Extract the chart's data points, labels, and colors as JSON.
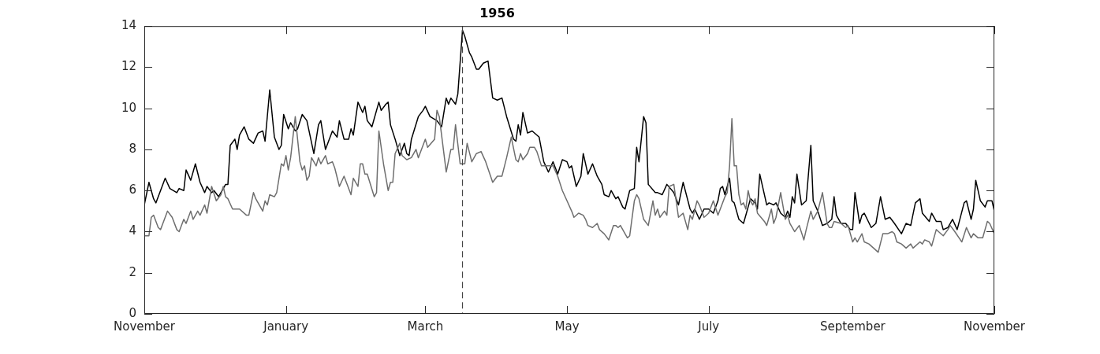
{
  "chart_data": {
    "type": "line",
    "title": "1956",
    "marker": "none",
    "xlim": [
      "1955-11-01",
      "1956-11-01"
    ],
    "xticks": [
      {
        "value": "1955-11-01",
        "label": "November"
      },
      {
        "value": "1956-01-01",
        "label": "January"
      },
      {
        "value": "1956-03-01",
        "label": "March"
      },
      {
        "value": "1956-05-01",
        "label": "May"
      },
      {
        "value": "1956-07-01",
        "label": "July"
      },
      {
        "value": "1956-09-01",
        "label": "September"
      },
      {
        "value": "1956-11-01",
        "label": "November"
      }
    ],
    "ylim": [
      0,
      14
    ],
    "yticks": [
      0,
      2,
      4,
      6,
      8,
      10,
      12,
      14
    ],
    "ref_lines": [
      {
        "axis": "x",
        "value": "1956-03-17",
        "color": "#444444",
        "line_style": "dashed"
      }
    ],
    "series": [
      {
        "color": "#6e6e6e",
        "line_style": "solid",
        "x": [
          "1955-11-01",
          "1955-11-03",
          "1955-11-04",
          "1955-11-05",
          "1955-11-07",
          "1955-11-08",
          "1955-11-09",
          "1955-11-11",
          "1955-11-13",
          "1955-11-15",
          "1955-11-16",
          "1955-11-18",
          "1955-11-19",
          "1955-11-21",
          "1955-11-22",
          "1955-11-24",
          "1955-11-25",
          "1955-11-27",
          "1955-11-28",
          "1955-11-30",
          "1955-12-02",
          "1955-12-04",
          "1955-12-05",
          "1955-12-06",
          "1955-12-07",
          "1955-12-09",
          "1955-12-11",
          "1955-12-12",
          "1955-12-15",
          "1955-12-16",
          "1955-12-18",
          "1955-12-19",
          "1955-12-22",
          "1955-12-23",
          "1955-12-24",
          "1955-12-25",
          "1955-12-27",
          "1955-12-28",
          "1955-12-30",
          "1955-12-31",
          "1956-01-01",
          "1956-01-02",
          "1956-01-03",
          "1956-01-05",
          "1956-01-07",
          "1956-01-08",
          "1956-01-09",
          "1956-01-10",
          "1956-01-11",
          "1956-01-12",
          "1956-01-14",
          "1956-01-15",
          "1956-01-16",
          "1956-01-18",
          "1956-01-19",
          "1956-01-21",
          "1956-01-22",
          "1956-01-24",
          "1956-01-26",
          "1956-01-27",
          "1956-01-29",
          "1956-01-30",
          "1956-02-01",
          "1956-02-02",
          "1956-02-03",
          "1956-02-04",
          "1956-02-05",
          "1956-02-08",
          "1956-02-09",
          "1956-02-10",
          "1956-02-12",
          "1956-02-14",
          "1956-02-15",
          "1956-02-16",
          "1956-02-17",
          "1956-02-19",
          "1956-02-20",
          "1956-02-22",
          "1956-02-24",
          "1956-02-26",
          "1956-02-27",
          "1956-03-01",
          "1956-03-02",
          "1956-03-05",
          "1956-03-06",
          "1956-03-07",
          "1956-03-10",
          "1956-03-12",
          "1956-03-13",
          "1956-03-14",
          "1956-03-16",
          "1956-03-18",
          "1956-03-19",
          "1956-03-21",
          "1956-03-23",
          "1956-03-25",
          "1956-03-27",
          "1956-03-30",
          "1956-04-01",
          "1956-04-03",
          "1956-04-05",
          "1956-04-07",
          "1956-04-09",
          "1956-04-10",
          "1956-04-11",
          "1956-04-12",
          "1956-04-14",
          "1956-04-15",
          "1956-04-17",
          "1956-04-18",
          "1956-04-20",
          "1956-04-22",
          "1956-04-25",
          "1956-04-27",
          "1956-04-29",
          "1956-05-01",
          "1956-05-03",
          "1956-05-04",
          "1956-05-06",
          "1956-05-08",
          "1956-05-09",
          "1956-05-10",
          "1956-05-12",
          "1956-05-14",
          "1956-05-15",
          "1956-05-17",
          "1956-05-19",
          "1956-05-21",
          "1956-05-22",
          "1956-05-23",
          "1956-05-24",
          "1956-05-25",
          "1956-05-27",
          "1956-05-28",
          "1956-05-30",
          "1956-05-31",
          "1956-06-01",
          "1956-06-03",
          "1956-06-05",
          "1956-06-07",
          "1956-06-08",
          "1956-06-09",
          "1956-06-10",
          "1956-06-12",
          "1956-06-13",
          "1956-06-14",
          "1956-06-16",
          "1956-06-18",
          "1956-06-20",
          "1956-06-22",
          "1956-06-23",
          "1956-06-24",
          "1956-06-26",
          "1956-06-27",
          "1956-06-29",
          "1956-07-01",
          "1956-07-03",
          "1956-07-05",
          "1956-07-08",
          "1956-07-09",
          "1956-07-10",
          "1956-07-11",
          "1956-07-12",
          "1956-07-13",
          "1956-07-14",
          "1956-07-15",
          "1956-07-16",
          "1956-07-17",
          "1956-07-18",
          "1956-07-19",
          "1956-07-20",
          "1956-07-21",
          "1956-07-22",
          "1956-07-25",
          "1956-07-26",
          "1956-07-28",
          "1956-07-29",
          "1956-07-30",
          "1956-08-01",
          "1956-08-03",
          "1956-08-04",
          "1956-08-05",
          "1956-08-07",
          "1956-08-09",
          "1956-08-11",
          "1956-08-12",
          "1956-08-14",
          "1956-08-15",
          "1956-08-17",
          "1956-08-19",
          "1956-08-21",
          "1956-08-22",
          "1956-08-23",
          "1956-08-24",
          "1956-08-27",
          "1956-08-29",
          "1956-08-30",
          "1956-09-01",
          "1956-09-02",
          "1956-09-03",
          "1956-09-05",
          "1956-09-06",
          "1956-09-08",
          "1956-09-10",
          "1956-09-12",
          "1956-09-14",
          "1956-09-16",
          "1956-09-18",
          "1956-09-19",
          "1956-09-20",
          "1956-09-22",
          "1956-09-24",
          "1956-09-26",
          "1956-09-27",
          "1956-09-30",
          "1956-10-01",
          "1956-10-02",
          "1956-10-04",
          "1956-10-05",
          "1956-10-07",
          "1956-10-08",
          "1956-10-10",
          "1956-10-12",
          "1956-10-13",
          "1956-10-15",
          "1956-10-18",
          "1956-10-20",
          "1956-10-22",
          "1956-10-23",
          "1956-10-25",
          "1956-10-27",
          "1956-10-29",
          "1956-10-30",
          "1956-11-01"
        ],
        "values": [
          3.8,
          3.8,
          4.7,
          4.8,
          4.2,
          4.1,
          4.4,
          5.0,
          4.7,
          4.1,
          4.0,
          4.6,
          4.4,
          5.0,
          4.6,
          5.0,
          4.8,
          5.3,
          4.9,
          6.2,
          5.5,
          5.8,
          6.2,
          5.7,
          5.6,
          5.1,
          5.1,
          5.1,
          4.8,
          4.8,
          5.9,
          5.6,
          5.0,
          5.5,
          5.3,
          5.8,
          5.7,
          5.9,
          7.3,
          7.2,
          7.7,
          7.0,
          7.6,
          9.6,
          7.4,
          7.0,
          7.2,
          6.5,
          6.7,
          7.6,
          7.2,
          7.6,
          7.3,
          7.7,
          7.3,
          7.4,
          7.1,
          6.2,
          6.7,
          6.4,
          5.8,
          6.6,
          6.2,
          7.3,
          7.3,
          6.8,
          6.8,
          5.7,
          5.9,
          8.9,
          7.3,
          6.0,
          6.4,
          6.4,
          7.8,
          8.3,
          7.7,
          7.5,
          7.6,
          8.0,
          7.6,
          8.5,
          8.1,
          8.5,
          9.9,
          9.6,
          6.9,
          8.0,
          8.0,
          9.2,
          7.3,
          7.3,
          8.3,
          7.4,
          7.8,
          7.9,
          7.4,
          6.4,
          6.7,
          6.7,
          7.6,
          8.6,
          7.5,
          7.4,
          7.8,
          7.5,
          7.8,
          8.1,
          8.1,
          7.9,
          7.2,
          7.2,
          7.2,
          6.7,
          6.0,
          5.5,
          5.0,
          4.7,
          4.9,
          4.8,
          4.6,
          4.3,
          4.2,
          4.4,
          4.1,
          3.9,
          3.6,
          4.3,
          4.3,
          4.2,
          4.3,
          4.1,
          3.7,
          3.8,
          5.5,
          5.8,
          5.6,
          4.6,
          4.3,
          5.5,
          4.8,
          5.1,
          4.7,
          5.0,
          4.8,
          6.2,
          6.3,
          4.7,
          4.9,
          4.1,
          4.8,
          4.6,
          5.5,
          5.3,
          4.7,
          4.9,
          5.5,
          4.8,
          5.7,
          5.9,
          7.2,
          9.5,
          7.2,
          7.2,
          5.8,
          5.3,
          5.4,
          5.1,
          6.0,
          5.5,
          5.3,
          5.6,
          4.9,
          4.5,
          4.3,
          5.1,
          4.4,
          4.7,
          5.9,
          4.6,
          4.8,
          4.4,
          4.0,
          4.3,
          3.6,
          4.1,
          5.0,
          4.6,
          5.0,
          5.9,
          4.4,
          4.2,
          4.2,
          4.5,
          4.4,
          4.2,
          4.3,
          3.5,
          3.7,
          3.5,
          3.9,
          3.5,
          3.4,
          3.2,
          3.0,
          3.9,
          3.9,
          4.0,
          3.9,
          3.5,
          3.4,
          3.2,
          3.4,
          3.2,
          3.5,
          3.4,
          3.6,
          3.5,
          3.3,
          4.1,
          4.0,
          3.8,
          4.1,
          4.3,
          4.0,
          3.5,
          4.2,
          3.7,
          3.9,
          3.7,
          3.7,
          4.5,
          4.4,
          3.9
        ]
      },
      {
        "color": "#000000",
        "line_style": "solid",
        "x": [
          "1955-11-01",
          "1955-11-03",
          "1955-11-05",
          "1955-11-06",
          "1955-11-10",
          "1955-11-12",
          "1955-11-15",
          "1955-11-16",
          "1955-11-18",
          "1955-11-19",
          "1955-11-21",
          "1955-11-23",
          "1955-11-25",
          "1955-11-27",
          "1955-11-28",
          "1955-11-30",
          "1955-12-01",
          "1955-12-03",
          "1955-12-06",
          "1955-12-07",
          "1955-12-08",
          "1955-12-10",
          "1955-12-11",
          "1955-12-12",
          "1955-12-14",
          "1955-12-16",
          "1955-12-18",
          "1955-12-20",
          "1955-12-22",
          "1955-12-23",
          "1955-12-25",
          "1955-12-27",
          "1955-12-29",
          "1955-12-30",
          "1955-12-31",
          "1956-01-02",
          "1956-01-03",
          "1956-01-05",
          "1956-01-06",
          "1956-01-08",
          "1956-01-10",
          "1956-01-13",
          "1956-01-15",
          "1956-01-16",
          "1956-01-18",
          "1956-01-21",
          "1956-01-23",
          "1956-01-24",
          "1956-01-26",
          "1956-01-28",
          "1956-01-29",
          "1956-01-30",
          "1956-02-01",
          "1956-02-03",
          "1956-02-04",
          "1956-02-05",
          "1956-02-07",
          "1956-02-08",
          "1956-02-10",
          "1956-02-11",
          "1956-02-13",
          "1956-02-14",
          "1956-02-15",
          "1956-02-17",
          "1956-02-19",
          "1956-02-21",
          "1956-02-22",
          "1956-02-23",
          "1956-02-24",
          "1956-02-27",
          "1956-02-29",
          "1956-03-01",
          "1956-03-03",
          "1956-03-06",
          "1956-03-08",
          "1956-03-10",
          "1956-03-11",
          "1956-03-12",
          "1956-03-14",
          "1956-03-15",
          "1956-03-17",
          "1956-03-18",
          "1956-03-20",
          "1956-03-21",
          "1956-03-23",
          "1956-03-24",
          "1956-03-26",
          "1956-03-28",
          "1956-03-30",
          "1956-04-01",
          "1956-04-03",
          "1956-04-05",
          "1956-04-08",
          "1956-04-09",
          "1956-04-10",
          "1956-04-11",
          "1956-04-12",
          "1956-04-14",
          "1956-04-16",
          "1956-04-19",
          "1956-04-21",
          "1956-04-23",
          "1956-04-25",
          "1956-04-27",
          "1956-04-29",
          "1956-05-01",
          "1956-05-02",
          "1956-05-03",
          "1956-05-05",
          "1956-05-07",
          "1956-05-08",
          "1956-05-10",
          "1956-05-12",
          "1956-05-14",
          "1956-05-16",
          "1956-05-17",
          "1956-05-19",
          "1956-05-20",
          "1956-05-22",
          "1956-05-23",
          "1956-05-25",
          "1956-05-26",
          "1956-05-28",
          "1956-05-30",
          "1956-05-31",
          "1956-06-01",
          "1956-06-03",
          "1956-06-04",
          "1956-06-05",
          "1956-06-08",
          "1956-06-09",
          "1956-06-11",
          "1956-06-13",
          "1956-06-16",
          "1956-06-18",
          "1956-06-20",
          "1956-06-23",
          "1956-06-24",
          "1956-06-25",
          "1956-06-27",
          "1956-06-29",
          "1956-07-01",
          "1956-07-03",
          "1956-07-05",
          "1956-07-06",
          "1956-07-07",
          "1956-07-08",
          "1956-07-10",
          "1956-07-11",
          "1956-07-12",
          "1956-07-14",
          "1956-07-16",
          "1956-07-19",
          "1956-07-21",
          "1956-07-22",
          "1956-07-23",
          "1956-07-26",
          "1956-07-27",
          "1956-07-29",
          "1956-07-30",
          "1956-08-01",
          "1956-08-03",
          "1956-08-04",
          "1956-08-05",
          "1956-08-06",
          "1956-08-07",
          "1956-08-08",
          "1956-08-10",
          "1956-08-12",
          "1956-08-14",
          "1956-08-15",
          "1956-08-17",
          "1956-08-19",
          "1956-08-21",
          "1956-08-23",
          "1956-08-24",
          "1956-08-25",
          "1956-08-27",
          "1956-08-29",
          "1956-08-31",
          "1956-09-01",
          "1956-09-02",
          "1956-09-04",
          "1956-09-05",
          "1956-09-06",
          "1956-09-09",
          "1956-09-11",
          "1956-09-13",
          "1956-09-15",
          "1956-09-17",
          "1956-09-19",
          "1956-09-22",
          "1956-09-24",
          "1956-09-26",
          "1956-09-28",
          "1956-09-30",
          "1956-10-01",
          "1956-10-04",
          "1956-10-05",
          "1956-10-07",
          "1956-10-09",
          "1956-10-10",
          "1956-10-12",
          "1956-10-14",
          "1956-10-16",
          "1956-10-19",
          "1956-10-20",
          "1956-10-22",
          "1956-10-23",
          "1956-10-24",
          "1956-10-26",
          "1956-10-28",
          "1956-10-29",
          "1956-10-31",
          "1956-11-01"
        ],
        "values": [
          5.3,
          6.4,
          5.6,
          5.4,
          6.6,
          6.1,
          5.9,
          6.1,
          6.0,
          7.0,
          6.5,
          7.3,
          6.4,
          5.9,
          6.2,
          5.9,
          6.0,
          5.7,
          6.3,
          6.3,
          8.2,
          8.5,
          8.0,
          8.7,
          9.1,
          8.5,
          8.3,
          8.8,
          8.9,
          8.4,
          10.9,
          8.6,
          8.0,
          8.2,
          9.7,
          9.0,
          9.3,
          8.9,
          9.0,
          9.7,
          9.4,
          7.8,
          9.2,
          9.4,
          8.0,
          8.9,
          8.6,
          9.4,
          8.5,
          8.5,
          9.0,
          8.7,
          10.3,
          9.8,
          10.1,
          9.4,
          9.1,
          9.5,
          10.3,
          9.9,
          10.2,
          10.3,
          9.2,
          8.5,
          7.7,
          8.3,
          7.8,
          7.7,
          8.5,
          9.6,
          9.9,
          10.1,
          9.6,
          9.4,
          9.1,
          10.5,
          10.2,
          10.5,
          10.2,
          10.7,
          13.8,
          13.5,
          12.7,
          12.5,
          11.9,
          11.9,
          12.2,
          12.3,
          10.5,
          10.4,
          10.5,
          9.6,
          8.5,
          8.4,
          9.2,
          8.7,
          9.8,
          8.8,
          8.9,
          8.6,
          7.4,
          6.9,
          7.4,
          6.8,
          7.5,
          7.4,
          7.1,
          7.2,
          6.2,
          6.7,
          7.8,
          6.8,
          7.3,
          6.7,
          6.3,
          5.8,
          5.7,
          6.0,
          5.6,
          5.7,
          5.2,
          5.1,
          6.0,
          6.1,
          8.1,
          7.4,
          9.6,
          9.3,
          6.3,
          5.9,
          5.9,
          5.8,
          6.3,
          5.9,
          5.3,
          6.4,
          5.1,
          4.9,
          5.1,
          4.6,
          5.1,
          5.1,
          4.9,
          5.5,
          6.1,
          6.2,
          5.8,
          6.6,
          5.5,
          5.4,
          4.6,
          4.4,
          5.6,
          5.4,
          5.1,
          6.8,
          5.3,
          5.4,
          5.3,
          5.4,
          4.9,
          4.7,
          5.0,
          4.7,
          5.7,
          5.4,
          6.8,
          5.3,
          5.5,
          8.2,
          5.5,
          5.0,
          4.3,
          4.4,
          4.6,
          5.7,
          4.8,
          4.4,
          4.4,
          4.1,
          4.1,
          5.9,
          4.4,
          4.8,
          4.9,
          4.2,
          4.4,
          5.7,
          4.6,
          4.7,
          4.4,
          3.9,
          4.4,
          4.3,
          5.4,
          5.6,
          4.9,
          4.5,
          4.9,
          4.5,
          4.5,
          4.1,
          4.2,
          4.6,
          4.1,
          5.4,
          5.5,
          4.6,
          5.1,
          6.5,
          5.5,
          5.2,
          5.5,
          5.5,
          5.0
        ]
      }
    ]
  }
}
